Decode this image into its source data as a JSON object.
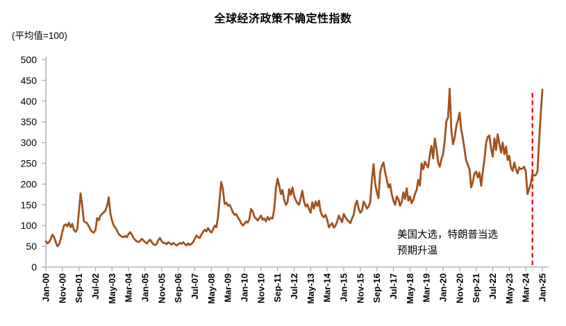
{
  "chart_data": {
    "type": "line",
    "title": "全球经济政策不确定性指数",
    "unit_note": "(平均值=100)",
    "grid": "off",
    "legend": "none",
    "ylim": [
      0,
      500
    ],
    "y_ticks": [
      0,
      50,
      100,
      150,
      200,
      250,
      300,
      350,
      400,
      450,
      500
    ],
    "x_tick_every_months": 10,
    "x_tick_labels": [
      "Jan-00",
      "Nov-00",
      "Sep-01",
      "Jul-02",
      "May-03",
      "Mar-04",
      "Jan-05",
      "Nov-05",
      "Sep-06",
      "Jul-07",
      "May-08",
      "Mar-09",
      "Jan-10",
      "Nov-10",
      "Sep-11",
      "Jul-12",
      "May-13",
      "Mar-14",
      "Jan-15",
      "Nov-15",
      "Sep-16",
      "Jul-17",
      "May-18",
      "Mar-19",
      "Jan-20",
      "Nov-20",
      "Sep-21",
      "Jul-22",
      "May-23",
      "Mar-24",
      "Jan-25"
    ],
    "series": [
      {
        "name": "全球经济政策不确定性指数",
        "frequency": "monthly",
        "x_range": [
          "Jan-00",
          "Jan-25"
        ],
        "values": [
          62,
          57,
          60,
          68,
          78,
          72,
          60,
          50,
          55,
          68,
          85,
          100,
          103,
          98,
          107,
          96,
          104,
          89,
          85,
          92,
          135,
          178,
          148,
          110,
          108,
          105,
          98,
          90,
          85,
          83,
          90,
          118,
          113,
          124,
          128,
          132,
          136,
          148,
          168,
          130,
          112,
          100,
          95,
          88,
          80,
          76,
          73,
          72,
          75,
          72,
          80,
          84,
          78,
          70,
          65,
          62,
          60,
          63,
          68,
          64,
          60,
          57,
          62,
          66,
          60,
          55,
          53,
          56,
          65,
          70,
          62,
          58,
          58,
          55,
          60,
          57,
          54,
          58,
          55,
          52,
          55,
          58,
          56,
          60,
          55,
          52,
          57,
          53,
          56,
          60,
          68,
          76,
          72,
          70,
          78,
          85,
          90,
          86,
          94,
          88,
          83,
          90,
          100,
          96,
          120,
          165,
          205,
          188,
          152,
          155,
          148,
          150,
          142,
          132,
          126,
          128,
          120,
          114,
          106,
          100,
          104,
          110,
          107,
          116,
          140,
          134,
          121,
          117,
          112,
          118,
          124,
          114,
          117,
          110,
          121,
          114,
          119,
          117,
          140,
          190,
          213,
          196,
          176,
          186,
          162,
          150,
          156,
          188,
          174,
          192,
          172,
          161,
          154,
          150,
          166,
          184,
          158,
          146,
          151,
          140,
          131,
          156,
          141,
          158,
          147,
          160,
          134,
          124,
          120,
          126,
          114,
          96,
          101,
          106,
          95,
          100,
          110,
          124,
          116,
          108,
          128,
          120,
          114,
          110,
          106,
          117,
          126,
          150,
          160,
          140,
          131,
          136,
          158,
          150,
          141,
          146,
          156,
          210,
          248,
          200,
          180,
          166,
          228,
          244,
          252,
          228,
          210,
          192,
          200,
          176,
          160,
          150,
          170,
          164,
          148,
          156,
          180,
          164,
          190,
          160,
          170,
          154,
          162,
          176,
          186,
          210,
          196,
          250,
          236,
          254,
          246,
          240,
          270,
          292,
          262,
          310,
          286,
          252,
          242,
          260,
          272,
          305,
          352,
          360,
          430,
          330,
          296,
          312,
          340,
          354,
          372,
          330,
          310,
          282,
          256,
          246,
          236,
          192,
          206,
          226,
          230,
          216,
          228,
          196,
          230,
          260,
          300,
          314,
          317,
          286,
          266,
          310,
          282,
          320,
          298,
          276,
          300,
          272,
          290,
          258,
          268,
          240,
          232,
          252,
          236,
          226,
          240,
          236,
          238,
          242,
          230,
          176,
          188,
          202,
          224,
          220,
          222,
          230,
          300,
          368,
          428
        ]
      }
    ],
    "annotation": {
      "line1": "美国大选，特朗普当选",
      "line2": "预期升温"
    },
    "event_line": {
      "month_index": 294,
      "top_value": 420,
      "style": "dashed",
      "color": "#FF0000"
    },
    "colors": {
      "line": "#A0521D",
      "axis": "#A6A6A6",
      "event": "#FF0000",
      "text": "#000000"
    }
  }
}
